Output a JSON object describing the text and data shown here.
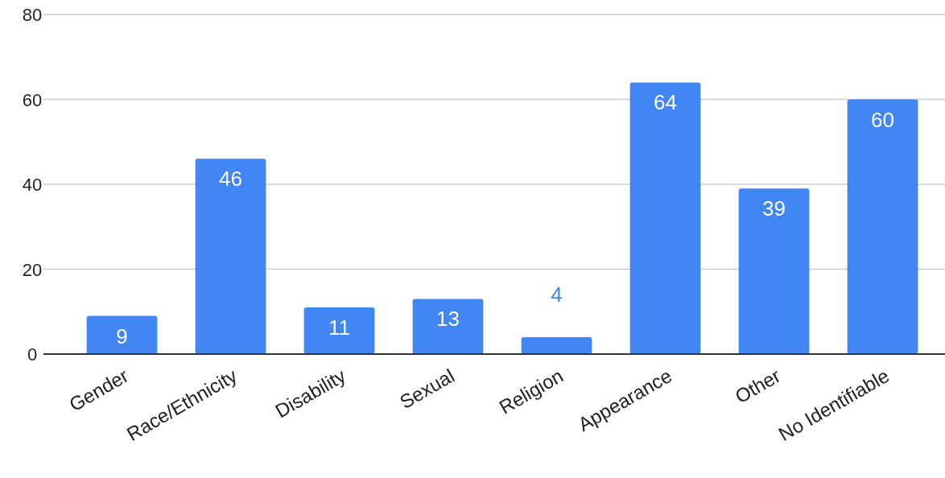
{
  "chart_data": {
    "type": "bar",
    "categories": [
      "Gender",
      "Race/Ethnicity",
      "Disability",
      "Sexual",
      "Religion",
      "Appearance",
      "Other",
      "No Identifiable"
    ],
    "values": [
      9,
      46,
      11,
      13,
      4,
      64,
      39,
      60
    ],
    "color": "#4285f4",
    "ylim": [
      0,
      80
    ],
    "yticks": [
      0,
      20,
      40,
      60,
      80
    ],
    "grid": "y",
    "data_labels": true
  }
}
